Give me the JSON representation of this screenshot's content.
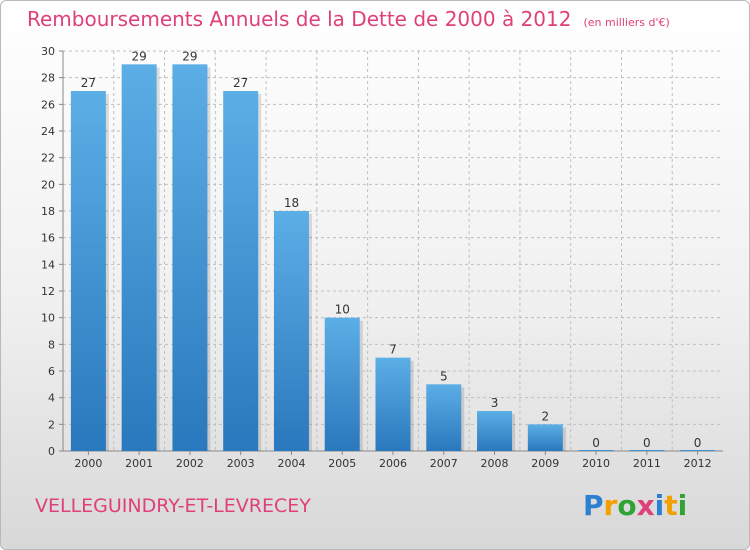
{
  "title": "Remboursements Annuels de la Dette de 2000 à 2012",
  "subtitle": "(en milliers d'€)",
  "commune": "VELLEGUINDRY-ET-LEVRECEY",
  "logo": {
    "text": "Proxiti",
    "letters": [
      {
        "ch": "P",
        "color": "#2d7fd0"
      },
      {
        "ch": "r",
        "color": "#f2a000"
      },
      {
        "ch": "o",
        "color": "#31a336"
      },
      {
        "ch": "x",
        "color": "#e0407a"
      },
      {
        "ch": "i",
        "color": "#2d7fd0"
      },
      {
        "ch": "t",
        "color": "#f2a000"
      },
      {
        "ch": "i",
        "color": "#31a336"
      }
    ]
  },
  "colors": {
    "bar_top": "#5caee6",
    "bar_bottom": "#2a78bd",
    "text_accent": "#e0407a",
    "grid": "#bfbfbf"
  },
  "chart_data": {
    "type": "bar",
    "categories": [
      "2000",
      "2001",
      "2002",
      "2003",
      "2004",
      "2005",
      "2006",
      "2007",
      "2008",
      "2009",
      "2010",
      "2011",
      "2012"
    ],
    "values": [
      27,
      29,
      29,
      27,
      18,
      10,
      7,
      5,
      3,
      2,
      0,
      0,
      0
    ],
    "yticks": [
      0,
      2,
      4,
      6,
      8,
      10,
      12,
      14,
      16,
      18,
      20,
      22,
      24,
      26,
      28,
      30
    ],
    "ylim": [
      0,
      30
    ],
    "grid": true,
    "title": "Remboursements Annuels de la Dette de 2000 à 2012",
    "xlabel": "",
    "ylabel": ""
  }
}
